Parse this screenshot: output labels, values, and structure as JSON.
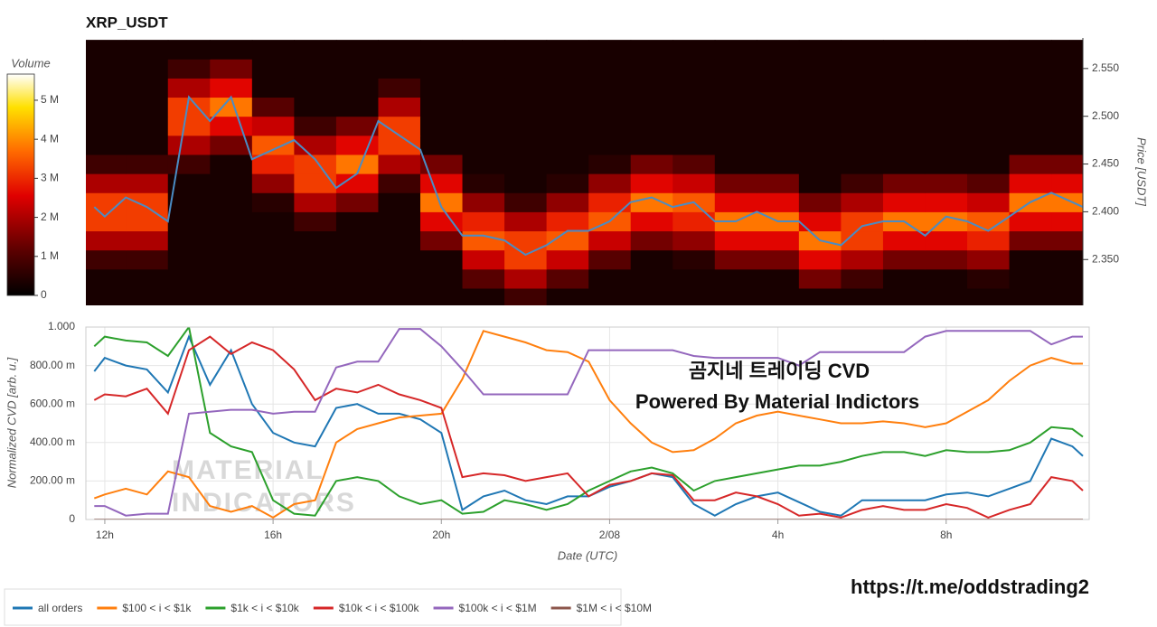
{
  "chart_data": [
    {
      "type": "heatmap",
      "title": "XRP_USDT",
      "ylabel": "Price [USDT]",
      "xlim": [
        11.55,
        35.25
      ],
      "ylim": [
        2.302,
        2.582
      ],
      "yticks": [
        {
          "value": 2.35,
          "label": "2.350"
        },
        {
          "value": 2.4,
          "label": "2.400"
        },
        {
          "value": 2.45,
          "label": "2.450"
        },
        {
          "value": 2.5,
          "label": "2.500"
        },
        {
          "value": 2.55,
          "label": "2.550"
        }
      ],
      "x_bins": [
        11.5,
        12.5,
        13.5,
        14.5,
        15.5,
        16.5,
        17.5,
        18.5,
        19.5,
        20.5,
        21.5,
        22.5,
        23.5,
        24.5,
        25.5,
        26.5,
        27.5,
        28.5,
        29.5,
        30.5,
        31.5,
        32.5,
        33.5,
        34.5,
        35.5
      ],
      "y_bins": [
        2.3,
        2.32,
        2.34,
        2.36,
        2.38,
        2.4,
        2.42,
        2.44,
        2.46,
        2.48,
        2.5,
        2.52,
        2.54,
        2.56,
        2.58
      ],
      "values": [
        [
          0.3,
          0.3,
          0.3,
          0.3,
          0.3,
          0.3,
          0.3,
          0.3,
          0.3,
          0.3,
          0.8,
          0.3,
          0.3,
          0.3,
          0.3,
          0.3,
          0.3,
          0.3,
          0.3,
          0.3,
          0.3,
          0.3,
          0.3,
          0.3
        ],
        [
          0.3,
          0.3,
          0.3,
          0.3,
          0.3,
          0.3,
          0.3,
          0.3,
          0.3,
          1.1,
          2.0,
          1.1,
          0.3,
          0.3,
          0.3,
          0.3,
          0.3,
          1.4,
          0.8,
          0.3,
          0.3,
          0.5,
          0.3,
          0.3
        ],
        [
          0.8,
          0.8,
          0.3,
          0.3,
          0.3,
          0.3,
          0.3,
          0.3,
          0.3,
          2.3,
          3.2,
          2.3,
          1.1,
          0.3,
          0.5,
          1.4,
          1.4,
          2.6,
          2.0,
          1.4,
          1.4,
          1.7,
          0.3,
          0.3
        ],
        [
          2.0,
          2.0,
          0.3,
          0.3,
          0.3,
          0.3,
          0.3,
          0.3,
          1.4,
          3.5,
          3.2,
          3.5,
          2.3,
          1.4,
          1.7,
          2.6,
          2.6,
          3.8,
          3.2,
          2.6,
          2.6,
          2.9,
          1.4,
          1.4
        ],
        [
          3.2,
          3.2,
          0.3,
          0.3,
          0.3,
          0.8,
          0.3,
          0.3,
          2.6,
          2.9,
          2.0,
          2.9,
          3.5,
          2.6,
          2.9,
          3.8,
          3.8,
          2.6,
          3.2,
          3.8,
          3.8,
          3.5,
          2.6,
          2.6
        ],
        [
          3.2,
          3.2,
          0.3,
          0.3,
          0.5,
          2.0,
          1.4,
          0.3,
          3.8,
          1.7,
          0.8,
          1.7,
          2.9,
          3.8,
          3.5,
          2.6,
          2.6,
          1.4,
          2.0,
          2.6,
          2.6,
          2.3,
          3.8,
          3.8
        ],
        [
          2.0,
          2.0,
          0.3,
          0.3,
          1.7,
          3.2,
          2.6,
          0.8,
          2.6,
          0.5,
          0.3,
          0.5,
          1.7,
          2.6,
          2.3,
          1.4,
          1.4,
          0.3,
          0.8,
          1.4,
          1.4,
          1.1,
          2.6,
          2.6
        ],
        [
          0.8,
          0.8,
          0.8,
          0.3,
          2.9,
          3.2,
          3.8,
          2.0,
          1.4,
          0.3,
          0.3,
          0.3,
          0.5,
          1.4,
          1.1,
          0.3,
          0.3,
          0.3,
          0.3,
          0.3,
          0.3,
          0.3,
          1.4,
          1.4
        ],
        [
          0.3,
          0.3,
          2.0,
          1.4,
          3.5,
          2.0,
          2.6,
          3.2,
          0.3,
          0.3,
          0.3,
          0.3,
          0.3,
          0.3,
          0.3,
          0.3,
          0.3,
          0.3,
          0.3,
          0.3,
          0.3,
          0.3,
          0.3,
          0.3
        ],
        [
          0.3,
          0.3,
          3.2,
          2.6,
          2.3,
          0.8,
          1.4,
          3.2,
          0.3,
          0.3,
          0.3,
          0.3,
          0.3,
          0.3,
          0.3,
          0.3,
          0.3,
          0.3,
          0.3,
          0.3,
          0.3,
          0.3,
          0.3,
          0.3
        ],
        [
          0.3,
          0.3,
          3.2,
          3.8,
          1.1,
          0.3,
          0.3,
          2.0,
          0.3,
          0.3,
          0.3,
          0.3,
          0.3,
          0.3,
          0.3,
          0.3,
          0.3,
          0.3,
          0.3,
          0.3,
          0.3,
          0.3,
          0.3,
          0.3
        ],
        [
          0.3,
          0.3,
          2.0,
          2.6,
          0.3,
          0.3,
          0.3,
          0.8,
          0.3,
          0.3,
          0.3,
          0.3,
          0.3,
          0.3,
          0.3,
          0.3,
          0.3,
          0.3,
          0.3,
          0.3,
          0.3,
          0.3,
          0.3,
          0.3
        ],
        [
          0.3,
          0.3,
          0.8,
          1.4,
          0.3,
          0.3,
          0.3,
          0.3,
          0.3,
          0.3,
          0.3,
          0.3,
          0.3,
          0.3,
          0.3,
          0.3,
          0.3,
          0.3,
          0.3,
          0.3,
          0.3,
          0.3,
          0.3,
          0.3
        ],
        [
          0.3,
          0.3,
          0.3,
          0.3,
          0.3,
          0.3,
          0.3,
          0.3,
          0.3,
          0.3,
          0.3,
          0.3,
          0.3,
          0.3,
          0.3,
          0.3,
          0.3,
          0.3,
          0.3,
          0.3,
          0.3,
          0.3,
          0.3,
          0.3
        ]
      ],
      "colorbar": {
        "label": "Volume",
        "lim": [
          0,
          5.67
        ],
        "ticks": [
          0,
          {
            "value": 1,
            "label": "1 M"
          },
          {
            "value": 2,
            "label": "2 M"
          },
          {
            "value": 3,
            "label": "3 M"
          },
          {
            "value": 4,
            "label": "4 M"
          },
          {
            "value": 5,
            "label": "5 M"
          }
        ]
      },
      "line": {
        "color": "#4a8cc4",
        "x": [
          11.75,
          12,
          12.5,
          13,
          13.5,
          14,
          14.5,
          15,
          15.5,
          16,
          16.5,
          17,
          17.5,
          18,
          18.5,
          19,
          19.5,
          20,
          20.5,
          21,
          21.5,
          22,
          22.5,
          23,
          23.5,
          24,
          24.5,
          25,
          25.5,
          26,
          26.5,
          27,
          27.5,
          28,
          28.5,
          29,
          29.5,
          30,
          30.5,
          31,
          31.5,
          32,
          32.5,
          33,
          33.5,
          34,
          34.5,
          35,
          35.25
        ],
        "values": [
          2.405,
          2.395,
          2.415,
          2.405,
          2.39,
          2.52,
          2.495,
          2.52,
          2.455,
          2.465,
          2.475,
          2.455,
          2.425,
          2.44,
          2.495,
          2.48,
          2.465,
          2.405,
          2.375,
          2.375,
          2.37,
          2.355,
          2.365,
          2.38,
          2.38,
          2.39,
          2.41,
          2.415,
          2.405,
          2.41,
          2.39,
          2.39,
          2.4,
          2.39,
          2.39,
          2.37,
          2.365,
          2.385,
          2.39,
          2.39,
          2.375,
          2.395,
          2.39,
          2.38,
          2.395,
          2.41,
          2.42,
          2.41,
          2.405
        ]
      }
    },
    {
      "type": "line",
      "ylabel": "Normalized CVD [arb. u.]",
      "xlabel": "Date (UTC)",
      "grid": true,
      "xlim": [
        11.55,
        35.4
      ],
      "ylim": [
        0,
        1
      ],
      "xticks": [
        {
          "value": 12,
          "label": "12h"
        },
        {
          "value": 16,
          "label": "16h"
        },
        {
          "value": 20,
          "label": "20h"
        },
        {
          "value": 24,
          "label": "2/08"
        },
        {
          "value": 28,
          "label": "4h"
        },
        {
          "value": 32,
          "label": "8h"
        }
      ],
      "yticks": [
        0,
        {
          "value": 0.2,
          "label": "200.00 m"
        },
        {
          "value": 0.4,
          "label": "400.00 m"
        },
        {
          "value": 0.6,
          "label": "600.00 m"
        },
        {
          "value": 0.8,
          "label": "800.00 m"
        },
        {
          "value": 1,
          "label": "1.000"
        }
      ],
      "x": [
        11.75,
        12,
        12.5,
        13,
        13.5,
        14,
        14.5,
        15,
        15.5,
        16,
        16.5,
        17,
        17.5,
        18,
        18.5,
        19,
        19.5,
        20,
        20.5,
        21,
        21.5,
        22,
        22.5,
        23,
        23.5,
        24,
        24.5,
        25,
        25.5,
        26,
        26.5,
        27,
        27.5,
        28,
        28.5,
        29,
        29.5,
        30,
        30.5,
        31,
        31.5,
        32,
        32.5,
        33,
        33.5,
        34,
        34.5,
        35,
        35.25
      ],
      "series": [
        {
          "name": "all orders",
          "color": "#1f77b4",
          "values": [
            0.77,
            0.84,
            0.8,
            0.78,
            0.66,
            0.95,
            0.7,
            0.88,
            0.6,
            0.45,
            0.4,
            0.38,
            0.58,
            0.6,
            0.55,
            0.55,
            0.52,
            0.45,
            0.05,
            0.12,
            0.15,
            0.1,
            0.08,
            0.12,
            0.12,
            0.17,
            0.2,
            0.24,
            0.22,
            0.08,
            0.02,
            0.08,
            0.12,
            0.14,
            0.09,
            0.04,
            0.02,
            0.1,
            0.1,
            0.1,
            0.1,
            0.13,
            0.14,
            0.12,
            0.16,
            0.2,
            0.42,
            0.38,
            0.33
          ]
        },
        {
          "name": "$100 < i < $1k",
          "color": "#ff7f0e",
          "values": [
            0.11,
            0.13,
            0.16,
            0.13,
            0.25,
            0.22,
            0.07,
            0.04,
            0.07,
            0.01,
            0.08,
            0.1,
            0.4,
            0.47,
            0.5,
            0.53,
            0.54,
            0.55,
            0.73,
            0.98,
            0.95,
            0.92,
            0.88,
            0.87,
            0.82,
            0.62,
            0.5,
            0.4,
            0.35,
            0.36,
            0.42,
            0.5,
            0.54,
            0.56,
            0.54,
            0.52,
            0.5,
            0.5,
            0.51,
            0.5,
            0.48,
            0.5,
            0.56,
            0.62,
            0.72,
            0.8,
            0.84,
            0.81,
            0.81
          ]
        },
        {
          "name": "$1k < i < $10k",
          "color": "#2ca02c",
          "values": [
            0.9,
            0.95,
            0.93,
            0.92,
            0.85,
            1.0,
            0.45,
            0.38,
            0.35,
            0.1,
            0.03,
            0.02,
            0.2,
            0.22,
            0.2,
            0.12,
            0.08,
            0.1,
            0.03,
            0.04,
            0.1,
            0.08,
            0.05,
            0.08,
            0.15,
            0.2,
            0.25,
            0.27,
            0.24,
            0.15,
            0.2,
            0.22,
            0.24,
            0.26,
            0.28,
            0.28,
            0.3,
            0.33,
            0.35,
            0.35,
            0.33,
            0.36,
            0.35,
            0.35,
            0.36,
            0.4,
            0.48,
            0.47,
            0.43
          ]
        },
        {
          "name": "$10k < i < $100k",
          "color": "#d62728",
          "values": [
            0.62,
            0.65,
            0.64,
            0.68,
            0.55,
            0.88,
            0.95,
            0.86,
            0.92,
            0.88,
            0.78,
            0.62,
            0.68,
            0.66,
            0.7,
            0.65,
            0.62,
            0.58,
            0.22,
            0.24,
            0.23,
            0.2,
            0.22,
            0.24,
            0.12,
            0.18,
            0.2,
            0.24,
            0.23,
            0.1,
            0.1,
            0.14,
            0.12,
            0.08,
            0.02,
            0.03,
            0.01,
            0.05,
            0.07,
            0.05,
            0.05,
            0.08,
            0.06,
            0.01,
            0.05,
            0.08,
            0.22,
            0.2,
            0.15
          ]
        },
        {
          "name": "$100k < i < $1M",
          "color": "#9467bd",
          "values": [
            0.07,
            0.07,
            0.02,
            0.03,
            0.03,
            0.55,
            0.56,
            0.57,
            0.57,
            0.55,
            0.56,
            0.56,
            0.79,
            0.82,
            0.82,
            0.99,
            0.99,
            0.9,
            0.78,
            0.65,
            0.65,
            0.65,
            0.65,
            0.65,
            0.88,
            0.88,
            0.88,
            0.88,
            0.88,
            0.85,
            0.84,
            0.84,
            0.84,
            0.84,
            0.8,
            0.87,
            0.87,
            0.87,
            0.87,
            0.87,
            0.95,
            0.98,
            0.98,
            0.98,
            0.98,
            0.98,
            0.91,
            0.95,
            0.95
          ]
        },
        {
          "name": "$1M < i < $10M",
          "color": "#8c564b",
          "values": [
            0,
            0,
            0,
            0,
            0,
            0,
            0,
            0,
            0,
            0,
            0,
            0,
            0,
            0,
            0,
            0,
            0,
            0,
            0,
            0,
            0,
            0,
            0,
            0,
            0,
            0,
            0,
            0,
            0,
            0,
            0,
            0,
            0,
            0,
            0,
            0,
            0,
            0,
            0,
            0,
            0,
            0,
            0,
            0,
            0,
            0,
            0,
            0,
            0
          ]
        }
      ]
    }
  ],
  "watermark": {
    "line1": "곰지네 트레이딩 CVD",
    "line2": "Powered By Material Indictors",
    "logo1": "MATERIAL",
    "logo2": "INDICATORS"
  },
  "url": "https://t.me/oddstrading2"
}
